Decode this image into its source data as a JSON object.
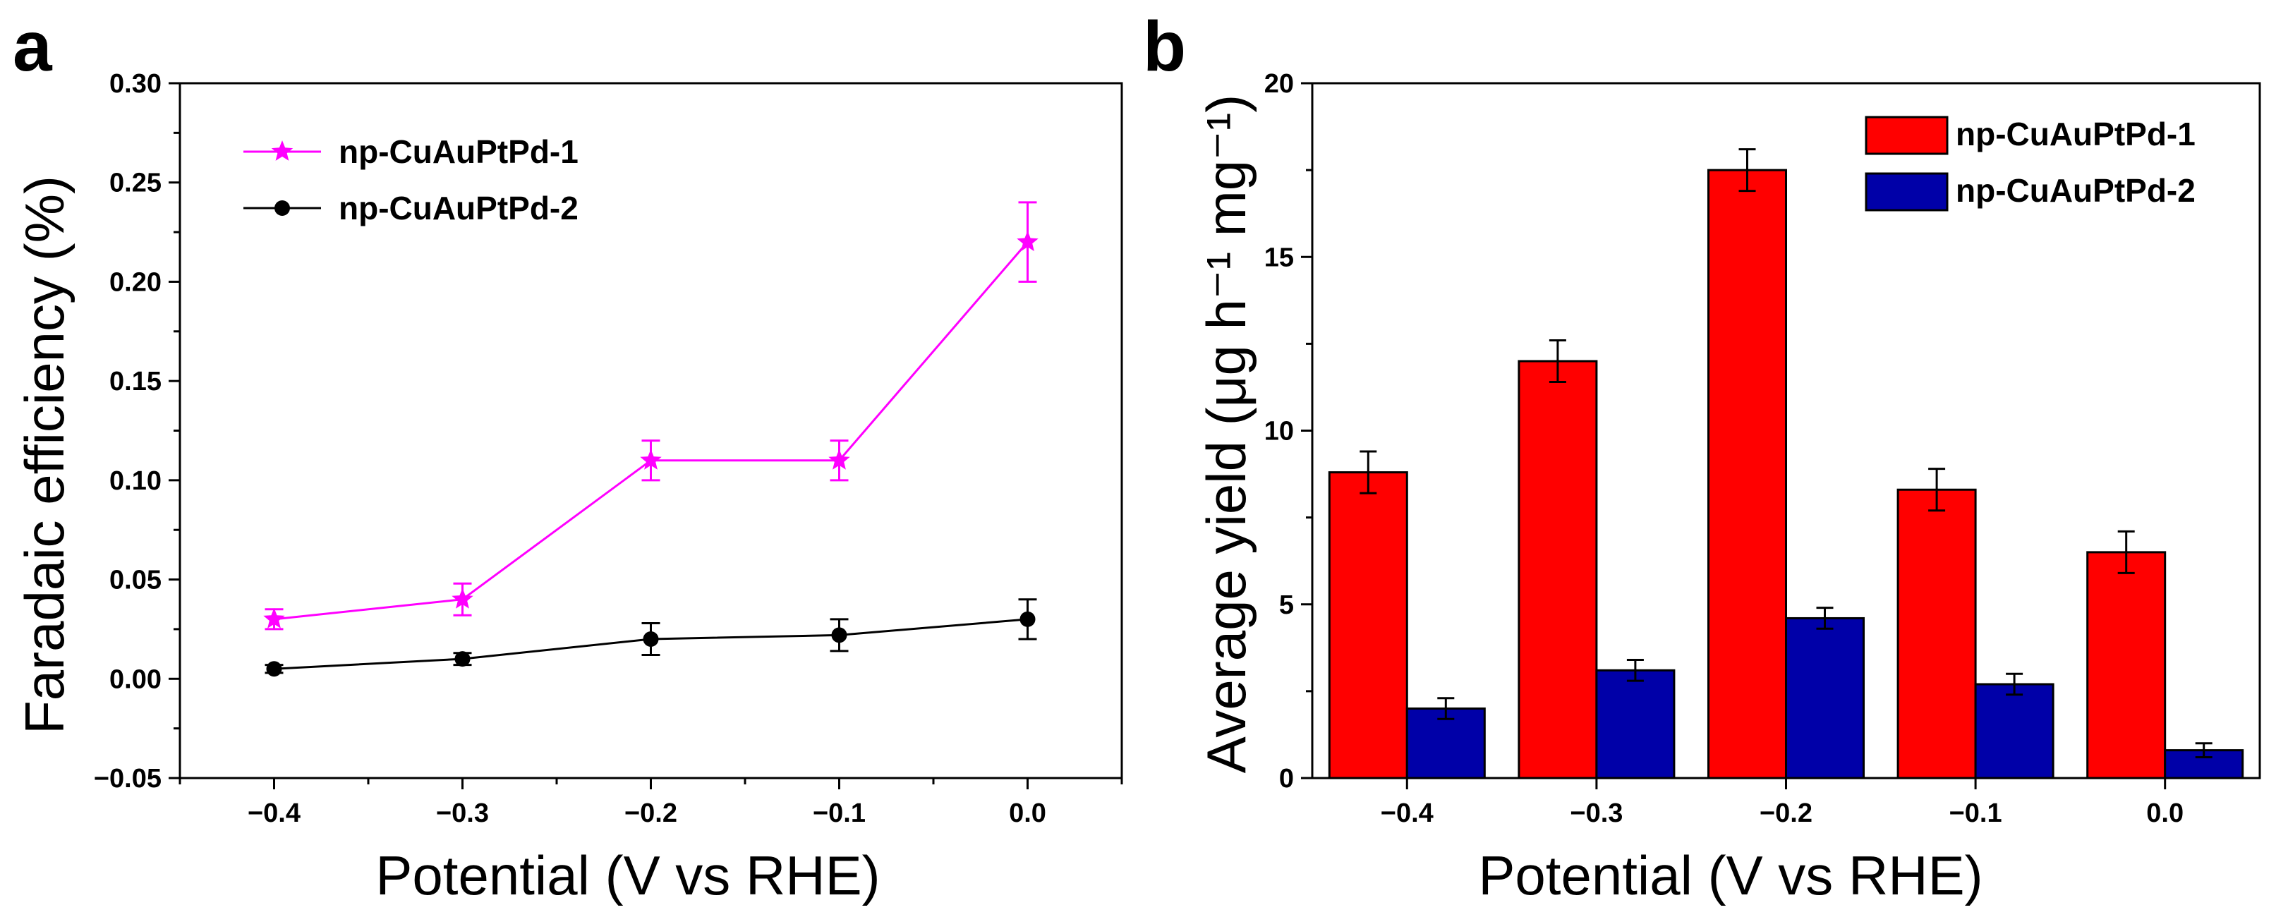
{
  "panels": [
    {
      "label": "a",
      "chart_data": {
        "type": "line",
        "xlabel": "Potential (V vs RHE)",
        "ylabel": "Faradaic efficiency (%)",
        "xlim": [
          -0.45,
          0.05
        ],
        "ylim": [
          -0.05,
          0.3
        ],
        "x_ticks": [
          -0.4,
          -0.3,
          -0.2,
          -0.1,
          0.0
        ],
        "x_tick_labels": [
          "−0.4",
          "−0.3",
          "−0.2",
          "−0.1",
          "0.0"
        ],
        "y_ticks": [
          -0.05,
          0.0,
          0.05,
          0.1,
          0.15,
          0.2,
          0.25,
          0.3
        ],
        "y_tick_labels": [
          "−0.05",
          "0.00",
          "0.05",
          "0.10",
          "0.15",
          "0.20",
          "0.25",
          "0.30"
        ],
        "legend_position": "top-left",
        "series": [
          {
            "name": "np-CuAuPtPd-1",
            "color": "#ff00ff",
            "marker": "star",
            "x": [
              -0.4,
              -0.3,
              -0.2,
              -0.1,
              0.0
            ],
            "y": [
              0.03,
              0.04,
              0.11,
              0.11,
              0.22
            ],
            "err": [
              0.005,
              0.008,
              0.01,
              0.01,
              0.02
            ]
          },
          {
            "name": "np-CuAuPtPd-2",
            "color": "#000000",
            "marker": "circle",
            "x": [
              -0.4,
              -0.3,
              -0.2,
              -0.1,
              0.0
            ],
            "y": [
              0.005,
              0.01,
              0.02,
              0.022,
              0.03
            ],
            "err": [
              0.002,
              0.003,
              0.008,
              0.008,
              0.01
            ]
          }
        ]
      }
    },
    {
      "label": "b",
      "chart_data": {
        "type": "bar",
        "xlabel": "Potential (V vs RHE)",
        "ylabel": "Average yield (μg h⁻¹ mg⁻¹)",
        "ylim": [
          0,
          20
        ],
        "categories": [
          "−0.4",
          "−0.3",
          "−0.2",
          "−0.1",
          "0.0"
        ],
        "y_ticks": [
          0,
          5,
          10,
          15,
          20
        ],
        "y_tick_labels": [
          "0",
          "5",
          "10",
          "15",
          "20"
        ],
        "legend_position": "top-right",
        "series": [
          {
            "name": "np-CuAuPtPd-1",
            "color": "#ff0000",
            "values": [
              8.8,
              12.0,
              17.5,
              8.3,
              6.5
            ],
            "err": [
              0.6,
              0.6,
              0.6,
              0.6,
              0.6
            ]
          },
          {
            "name": "np-CuAuPtPd-2",
            "color": "#0000a8",
            "values": [
              2.0,
              3.1,
              4.6,
              2.7,
              0.8
            ],
            "err": [
              0.3,
              0.3,
              0.3,
              0.3,
              0.2
            ]
          }
        ]
      }
    }
  ]
}
